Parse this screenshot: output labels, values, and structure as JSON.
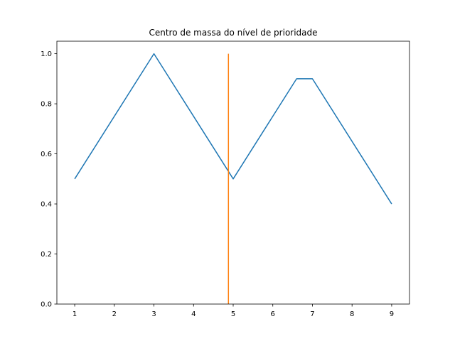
{
  "chart_data": {
    "type": "line",
    "title": "Centro de massa do nível de prioridade",
    "xlabel": "",
    "ylabel": "",
    "xlim": [
      0.55,
      9.45
    ],
    "ylim": [
      0,
      1.05
    ],
    "xticks": [
      1,
      2,
      3,
      4,
      5,
      6,
      7,
      8,
      9
    ],
    "yticks": [
      0.0,
      0.2,
      0.4,
      0.6,
      0.8,
      1.0
    ],
    "xtick_labels": [
      "1",
      "2",
      "3",
      "4",
      "5",
      "6",
      "7",
      "8",
      "9"
    ],
    "ytick_labels": [
      "0.0",
      "0.2",
      "0.4",
      "0.6",
      "0.8",
      "1.0"
    ],
    "grid": false,
    "series": [
      {
        "color": "#1f77b4",
        "x": [
          1,
          3,
          5,
          6.6,
          7,
          9
        ],
        "y": [
          0.5,
          1.0,
          0.5,
          0.9,
          0.9,
          0.4
        ]
      },
      {
        "color": "#ff7f0e",
        "x": [
          4.88,
          4.88
        ],
        "y": [
          0.0,
          1.0
        ]
      }
    ]
  }
}
